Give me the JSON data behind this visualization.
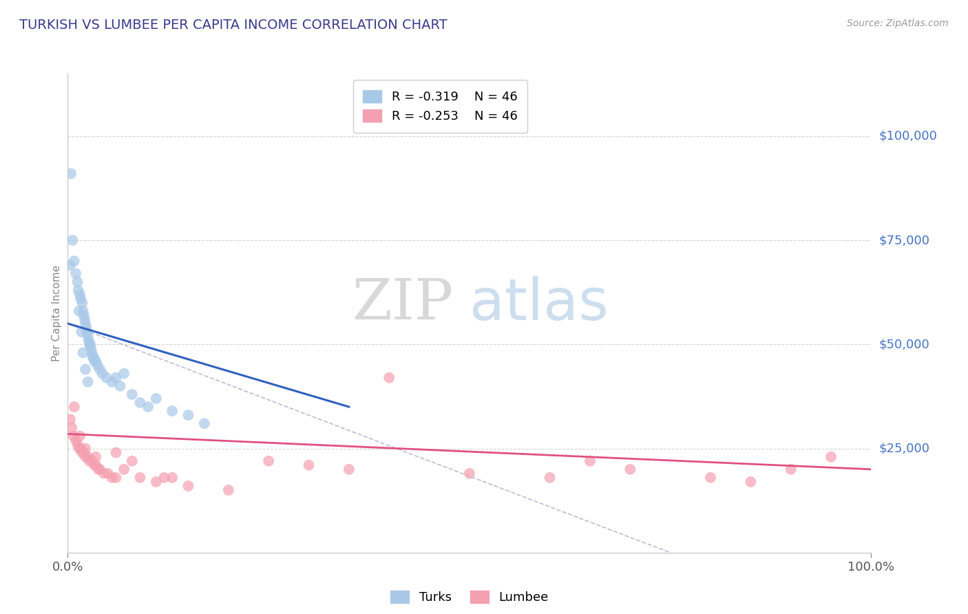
{
  "title": "TURKISH VS LUMBEE PER CAPITA INCOME CORRELATION CHART",
  "source_text": "Source: ZipAtlas.com",
  "ylabel": "Per Capita Income",
  "xlim": [
    0.0,
    1.0
  ],
  "ylim": [
    0,
    115000
  ],
  "yticks": [
    25000,
    50000,
    75000,
    100000
  ],
  "ytick_labels": [
    "$25,000",
    "$50,000",
    "$75,000",
    "$100,000"
  ],
  "xtick_labels": [
    "0.0%",
    "100.0%"
  ],
  "legend_turks_r": "R = -0.319",
  "legend_turks_n": "N = 46",
  "legend_lumbee_r": "R = -0.253",
  "legend_lumbee_n": "N = 46",
  "turks_color": "#a8c8e8",
  "lumbee_color": "#f4a0b0",
  "turks_line_color": "#3060c0",
  "lumbee_line_color": "#e05080",
  "watermark_zip": "ZIP",
  "watermark_atlas": "atlas",
  "background_color": "#ffffff",
  "turks_x": [
    0.004,
    0.006,
    0.008,
    0.01,
    0.012,
    0.013,
    0.015,
    0.016,
    0.018,
    0.019,
    0.02,
    0.021,
    0.022,
    0.023,
    0.024,
    0.025,
    0.026,
    0.027,
    0.028,
    0.029,
    0.03,
    0.031,
    0.032,
    0.033,
    0.035,
    0.037,
    0.04,
    0.043,
    0.048,
    0.055,
    0.06,
    0.065,
    0.07,
    0.08,
    0.09,
    0.1,
    0.11,
    0.13,
    0.15,
    0.17,
    0.003,
    0.014,
    0.017,
    0.019,
    0.022,
    0.025
  ],
  "turks_y": [
    91000,
    75000,
    70000,
    67000,
    65000,
    63000,
    62000,
    61000,
    60000,
    58000,
    57000,
    56000,
    55000,
    54000,
    53000,
    52000,
    51000,
    50000,
    50000,
    49000,
    48000,
    47000,
    47000,
    46000,
    46000,
    45000,
    44000,
    43000,
    42000,
    41000,
    42000,
    40000,
    43000,
    38000,
    36000,
    35000,
    37000,
    34000,
    33000,
    31000,
    69000,
    58000,
    53000,
    48000,
    44000,
    41000
  ],
  "lumbee_x": [
    0.003,
    0.005,
    0.007,
    0.01,
    0.012,
    0.014,
    0.016,
    0.018,
    0.02,
    0.022,
    0.025,
    0.027,
    0.03,
    0.033,
    0.035,
    0.038,
    0.04,
    0.045,
    0.05,
    0.055,
    0.06,
    0.07,
    0.08,
    0.09,
    0.11,
    0.13,
    0.15,
    0.2,
    0.25,
    0.3,
    0.35,
    0.4,
    0.5,
    0.6,
    0.65,
    0.7,
    0.8,
    0.85,
    0.9,
    0.95,
    0.008,
    0.015,
    0.022,
    0.035,
    0.06,
    0.12
  ],
  "lumbee_y": [
    32000,
    30000,
    28000,
    27000,
    26000,
    25000,
    25000,
    24000,
    24000,
    23000,
    23000,
    22000,
    22000,
    21000,
    21000,
    20000,
    20000,
    19000,
    19000,
    18000,
    18000,
    20000,
    22000,
    18000,
    17000,
    18000,
    16000,
    15000,
    22000,
    21000,
    20000,
    42000,
    19000,
    18000,
    22000,
    20000,
    18000,
    17000,
    20000,
    23000,
    35000,
    28000,
    25000,
    23000,
    24000,
    18000
  ],
  "turks_trendline_x0": 0.0,
  "turks_trendline_y0": 55000,
  "turks_trendline_x1": 0.35,
  "turks_trendline_y1": 35000,
  "lumbee_trendline_x0": 0.0,
  "lumbee_trendline_y0": 28500,
  "lumbee_trendline_x1": 1.0,
  "lumbee_trendline_y1": 20000,
  "dash_line_x0": 0.0,
  "dash_line_y0": 55000,
  "dash_line_x1": 0.75,
  "dash_line_y1": 0,
  "grid_color": "#c8c8c8",
  "title_color": "#3a3a8c",
  "axis_label_color": "#888888",
  "right_label_color": "#4472c4"
}
